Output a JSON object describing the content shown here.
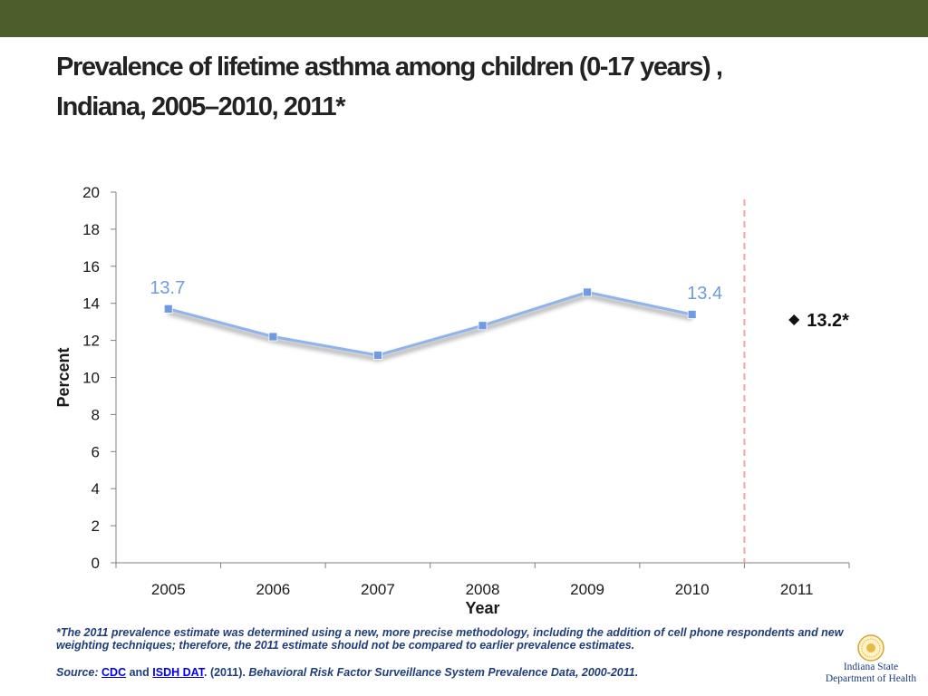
{
  "colors": {
    "top_bar": "#4d5e2c",
    "series_line": "#8fb3ec",
    "series_marker": "#6f9be3",
    "label_color": "#6f9be3",
    "divider": "#f2a3a3",
    "axis": "#808080"
  },
  "title": {
    "line1": "Prevalence of lifetime asthma among children (0-17 years) ,",
    "line2": "Indiana, 2005–2010, 2011*"
  },
  "chart_data": {
    "type": "line",
    "title": "Prevalence of lifetime asthma among children (0-17 years) , Indiana, 2005–2010, 2011*",
    "xlabel": "Year",
    "ylabel": "Percent",
    "ylim": [
      0,
      20
    ],
    "yticks": [
      "0",
      "2",
      "4",
      "6",
      "8",
      "10",
      "12",
      "14",
      "16",
      "18",
      "20"
    ],
    "categories": [
      "2005",
      "2006",
      "2007",
      "2008",
      "2009",
      "2010",
      "2011"
    ],
    "series": [
      {
        "values": [
          13.7,
          12.2,
          11.2,
          12.8,
          14.6,
          13.4,
          null
        ]
      }
    ],
    "data_labels": [
      {
        "category": "2005",
        "text": "13.7"
      },
      {
        "category": "2010",
        "text": "13.4"
      }
    ],
    "separate_point": {
      "category": "2011",
      "value": 13.2,
      "label": "13.2*",
      "marker": "diamond"
    },
    "divider_after": "2010",
    "grid": false
  },
  "footnote": "*The 2011 prevalence estimate was determined using a new, more precise methodology, including the addition of cell phone respondents  and new weighting techniques; therefore, the 2011 estimate should not be compared to earlier prevalence estimates.",
  "source": {
    "prefix": "Source: ",
    "link1": "CDC",
    "and": " and ",
    "link2": "ISDH DAT",
    "year": ". (2011). ",
    "publication": "Behavioral Risk Factor Surveillance System Prevalence Data, 2000-2011."
  },
  "logo": {
    "line1": "Indiana State",
    "line2": "Department of Health"
  }
}
